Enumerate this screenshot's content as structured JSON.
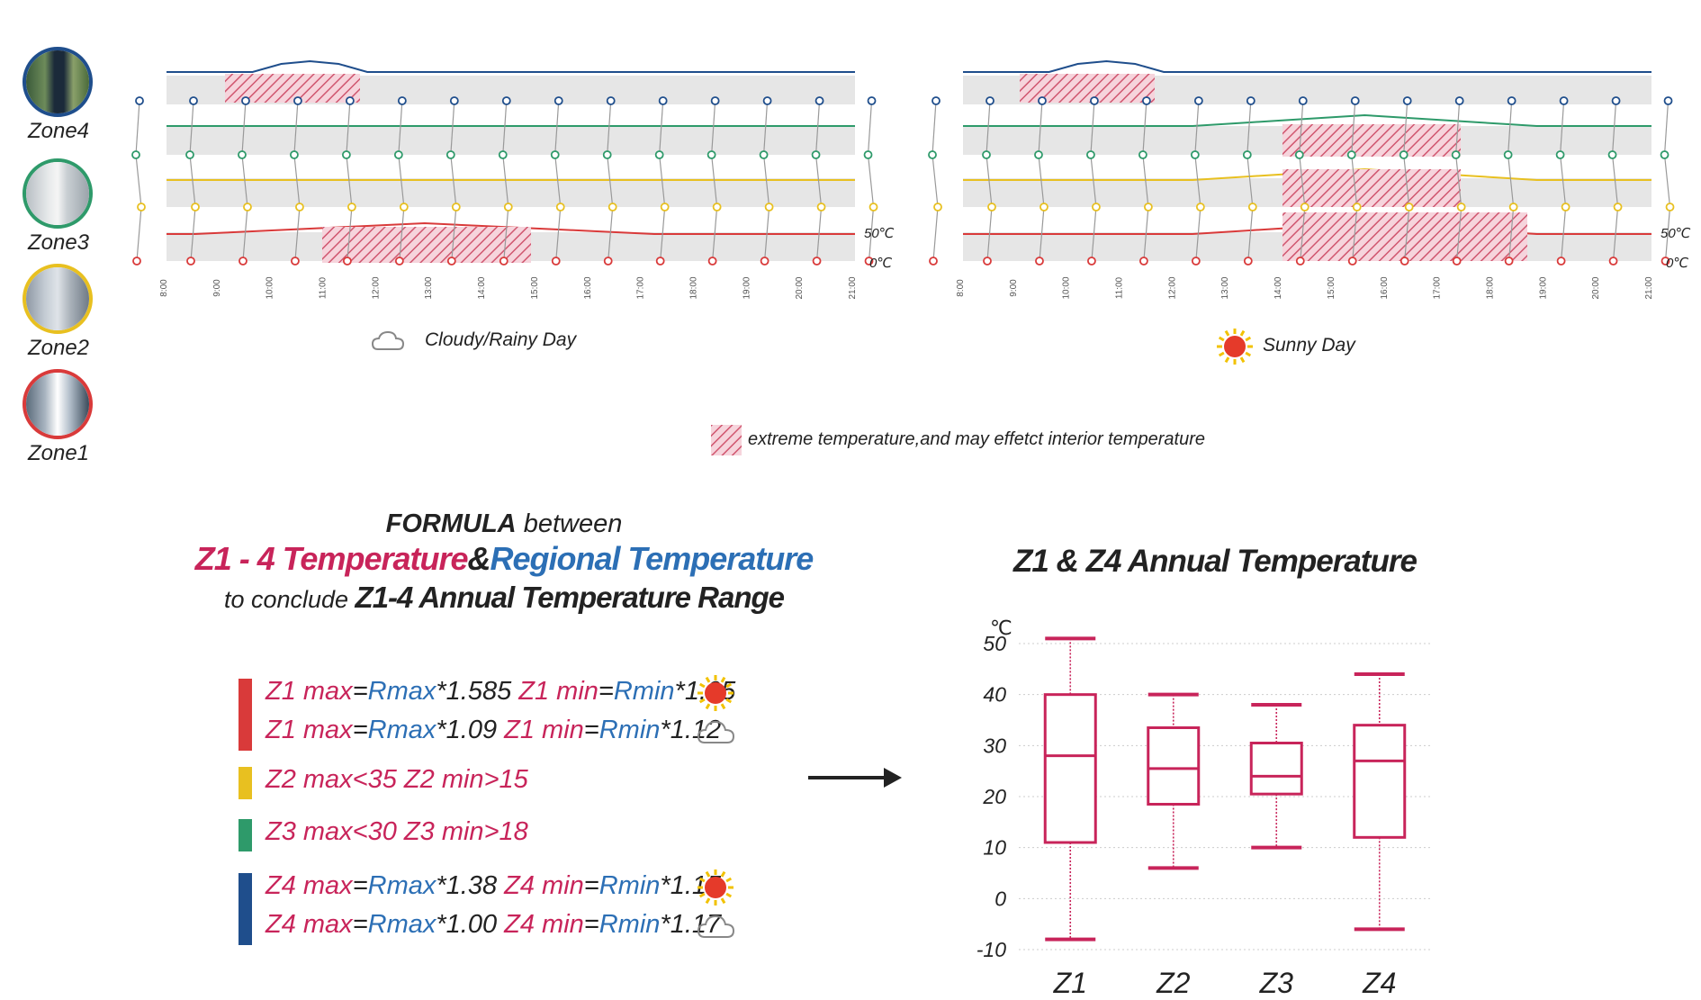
{
  "zones": [
    {
      "label": "Zone4",
      "color": "#1f4e8c"
    },
    {
      "label": "Zone3",
      "color": "#2e9a6a"
    },
    {
      "label": "Zone2",
      "color": "#e8c020"
    },
    {
      "label": "Zone1",
      "color": "#d93a3a"
    }
  ],
  "daily": {
    "scale_labels": [
      "50℃",
      "0℃"
    ],
    "times": [
      "8:00",
      "9:00",
      "10:00",
      "11:00",
      "12:00",
      "13:00",
      "14:00",
      "15:00",
      "16:00",
      "17:00",
      "18:00",
      "19:00",
      "20:00",
      "21:00"
    ],
    "cloudy_caption": "Cloudy/Rainy Day",
    "sunny_caption": "Sunny Day",
    "legend_text": "extreme temperature,and may effetct interior temperature"
  },
  "formula": {
    "title_bold": "FORMULA",
    "title_rest": " between",
    "line2_a": "Z1 - 4 Temperature",
    "line2_amp": "&",
    "line2_b": "Regional Temperature",
    "line3_a": "to conclude ",
    "line3_b": "Z1-4 Annual Temperature Range",
    "rows": [
      {
        "color": "#d93a3a",
        "l1": [
          "Z1 max",
          "=",
          "Rmax",
          "*1.585",
          "  ",
          "Z1 min",
          "=",
          "Rmin",
          "*1.05"
        ],
        "w1": "sun",
        "l2": [
          "Z1 max",
          "=",
          "Rmax",
          "*1.09",
          "  ",
          "Z1 min",
          "=",
          "Rmin",
          "*1.12"
        ],
        "w2": "cloud"
      },
      {
        "color": "#e8c020",
        "l1": [
          "Z2 max<35  Z2 min>15"
        ]
      },
      {
        "color": "#2e9a6a",
        "l1": [
          "Z3 max<30  Z3 min>18"
        ]
      },
      {
        "color": "#1f4e8c",
        "l1": [
          "Z4 max",
          "=",
          "Rmax",
          "*1.38",
          "  ",
          "Z4 min",
          "=",
          "Rmin",
          "*1.15"
        ],
        "w1": "sun",
        "l2": [
          "Z4 max",
          "=",
          "Rmax",
          "*1.00",
          "  ",
          "Z4 min",
          "=",
          "Rmin",
          "*1.17"
        ],
        "w2": "cloud"
      }
    ]
  },
  "chart_data": {
    "type": "box",
    "title": "Z1 & Z4 Annual Temperature",
    "ylabel": "℃",
    "ylim": [
      -10,
      50
    ],
    "yticks": [
      -10,
      0,
      10,
      20,
      30,
      40,
      50
    ],
    "grid": true,
    "categories": [
      "Z1",
      "Z2",
      "Z3",
      "Z4"
    ],
    "boxes": [
      {
        "name": "Z1",
        "min": -8,
        "q1": 11,
        "median": 28,
        "q3": 40,
        "max": 51
      },
      {
        "name": "Z2",
        "min": 6,
        "q1": 18.5,
        "median": 25.5,
        "q3": 33.5,
        "max": 40
      },
      {
        "name": "Z3",
        "min": 10,
        "q1": 20.5,
        "median": 24,
        "q3": 30.5,
        "max": 38
      },
      {
        "name": "Z4",
        "min": -6,
        "q1": 12,
        "median": 27,
        "q3": 34,
        "max": 44
      }
    ],
    "color": "#c8245a"
  }
}
